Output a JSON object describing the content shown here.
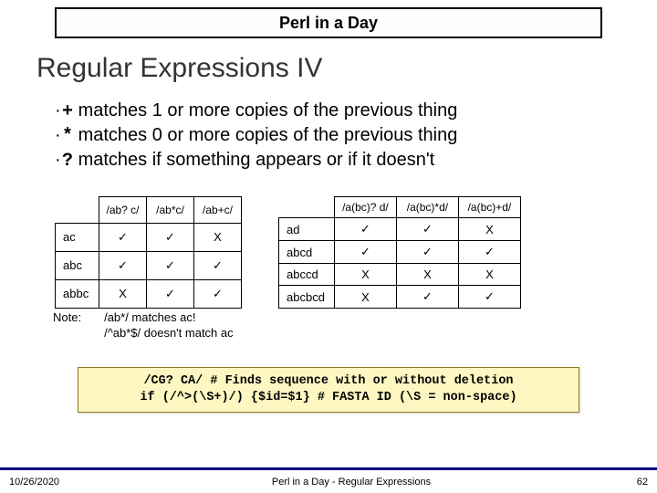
{
  "title_bar": "Perl in a Day",
  "heading": "Regular Expressions IV",
  "bullets": [
    {
      "op": "+",
      "text": " matches 1 or more copies of the previous thing"
    },
    {
      "op": "*",
      "text": " matches 0 or more copies of the previous thing"
    },
    {
      "op": "?",
      "text": " matches if something appears or if it doesn't"
    }
  ],
  "tick": "✓",
  "cross": "X",
  "table1": {
    "headers": [
      "/ab? c/",
      "/ab*c/",
      "/ab+c/"
    ],
    "rows": [
      {
        "label": "ac",
        "cells": [
          "tick",
          "tick",
          "cross"
        ]
      },
      {
        "label": "abc",
        "cells": [
          "tick",
          "tick",
          "tick"
        ]
      },
      {
        "label": "abbc",
        "cells": [
          "cross",
          "tick",
          "tick"
        ]
      }
    ],
    "col_widths": [
      "48px",
      "52px",
      "52px",
      "52px"
    ]
  },
  "table2": {
    "headers": [
      "/a(bc)? d/",
      "/a(bc)*d/",
      "/a(bc)+d/"
    ],
    "rows": [
      {
        "label": "ad",
        "cells": [
          "tick",
          "tick",
          "cross"
        ]
      },
      {
        "label": "abcd",
        "cells": [
          "tick",
          "tick",
          "tick"
        ]
      },
      {
        "label": "abccd",
        "cells": [
          "cross",
          "cross",
          "cross"
        ]
      },
      {
        "label": "abcbcd",
        "cells": [
          "cross",
          "tick",
          "tick"
        ]
      }
    ],
    "col_widths": [
      "58px",
      "68px",
      "68px",
      "68px"
    ]
  },
  "note": {
    "label": "Note:",
    "line1": "/ab*/ matches ac!",
    "line2": "/^ab*$/ doesn't match ac"
  },
  "codebox": {
    "line1": "/CG? CA/ # Finds sequence with or without deletion",
    "line2": "if (/^>(\\S+)/) {$id=$1} # FASTA ID (\\S = non-space)"
  },
  "footer": {
    "date": "10/26/2020",
    "title": "Perl in a Day - Regular Expressions",
    "page": "62"
  }
}
